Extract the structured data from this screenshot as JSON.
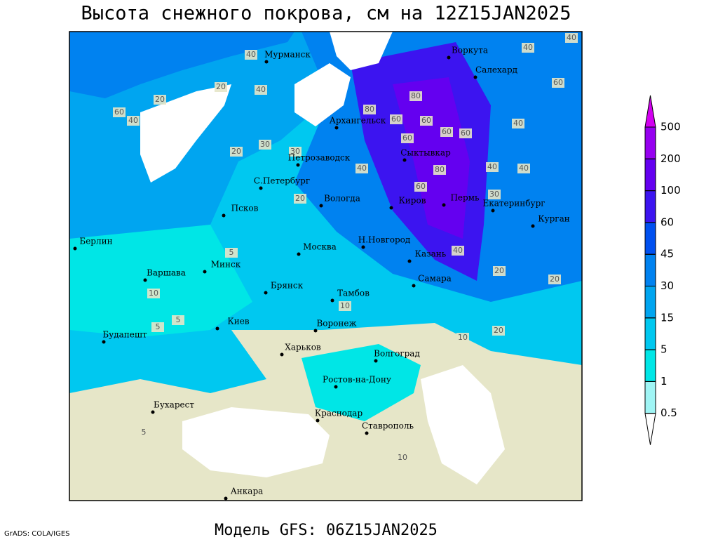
{
  "title": "Высота снежного покрова, см на 12Z15JAN2025",
  "footer": "Модель GFS: 06Z15JAN2025",
  "credit": "GrADS: COLA/IGES",
  "cities": [
    "Мурманск",
    "Воркута",
    "Салехард",
    "Архангельск",
    "Сыктывкар",
    "Петрозаводск",
    "С.Петербург",
    "Вологда",
    "Киров",
    "Пермь",
    "Екатеринбург",
    "Курган",
    "Псков",
    "Берлин",
    "Н.Новгород",
    "Москва",
    "Казань",
    "Минск",
    "Варшава",
    "Самара",
    "Брянск",
    "Тамбов",
    "Киев",
    "Воронеж",
    "Будапешт",
    "Харьков",
    "Волгоград",
    "Ростов-на-Дону",
    "Бухарест",
    "Краснодар",
    "Ставрополь",
    "Анкара"
  ],
  "contour_labels": [
    40,
    60,
    40,
    20,
    20,
    40,
    20,
    30,
    30,
    80,
    60,
    60,
    80,
    60,
    40,
    80,
    60,
    60,
    40,
    30,
    20,
    5,
    40,
    20,
    20,
    20,
    10,
    10,
    5,
    5,
    10,
    5,
    10,
    40,
    40,
    60,
    40,
    60,
    40
  ],
  "legend": {
    "levels": [
      0.5,
      1,
      5,
      15,
      30,
      45,
      60,
      100,
      200,
      500
    ],
    "colors": [
      "#ffffff",
      "#a0f5f5",
      "#00e6e6",
      "#00c8f0",
      "#00a5f0",
      "#0082f0",
      "#0050f0",
      "#3c14f0",
      "#6400f0",
      "#9600f0",
      "#d200f0"
    ]
  }
}
